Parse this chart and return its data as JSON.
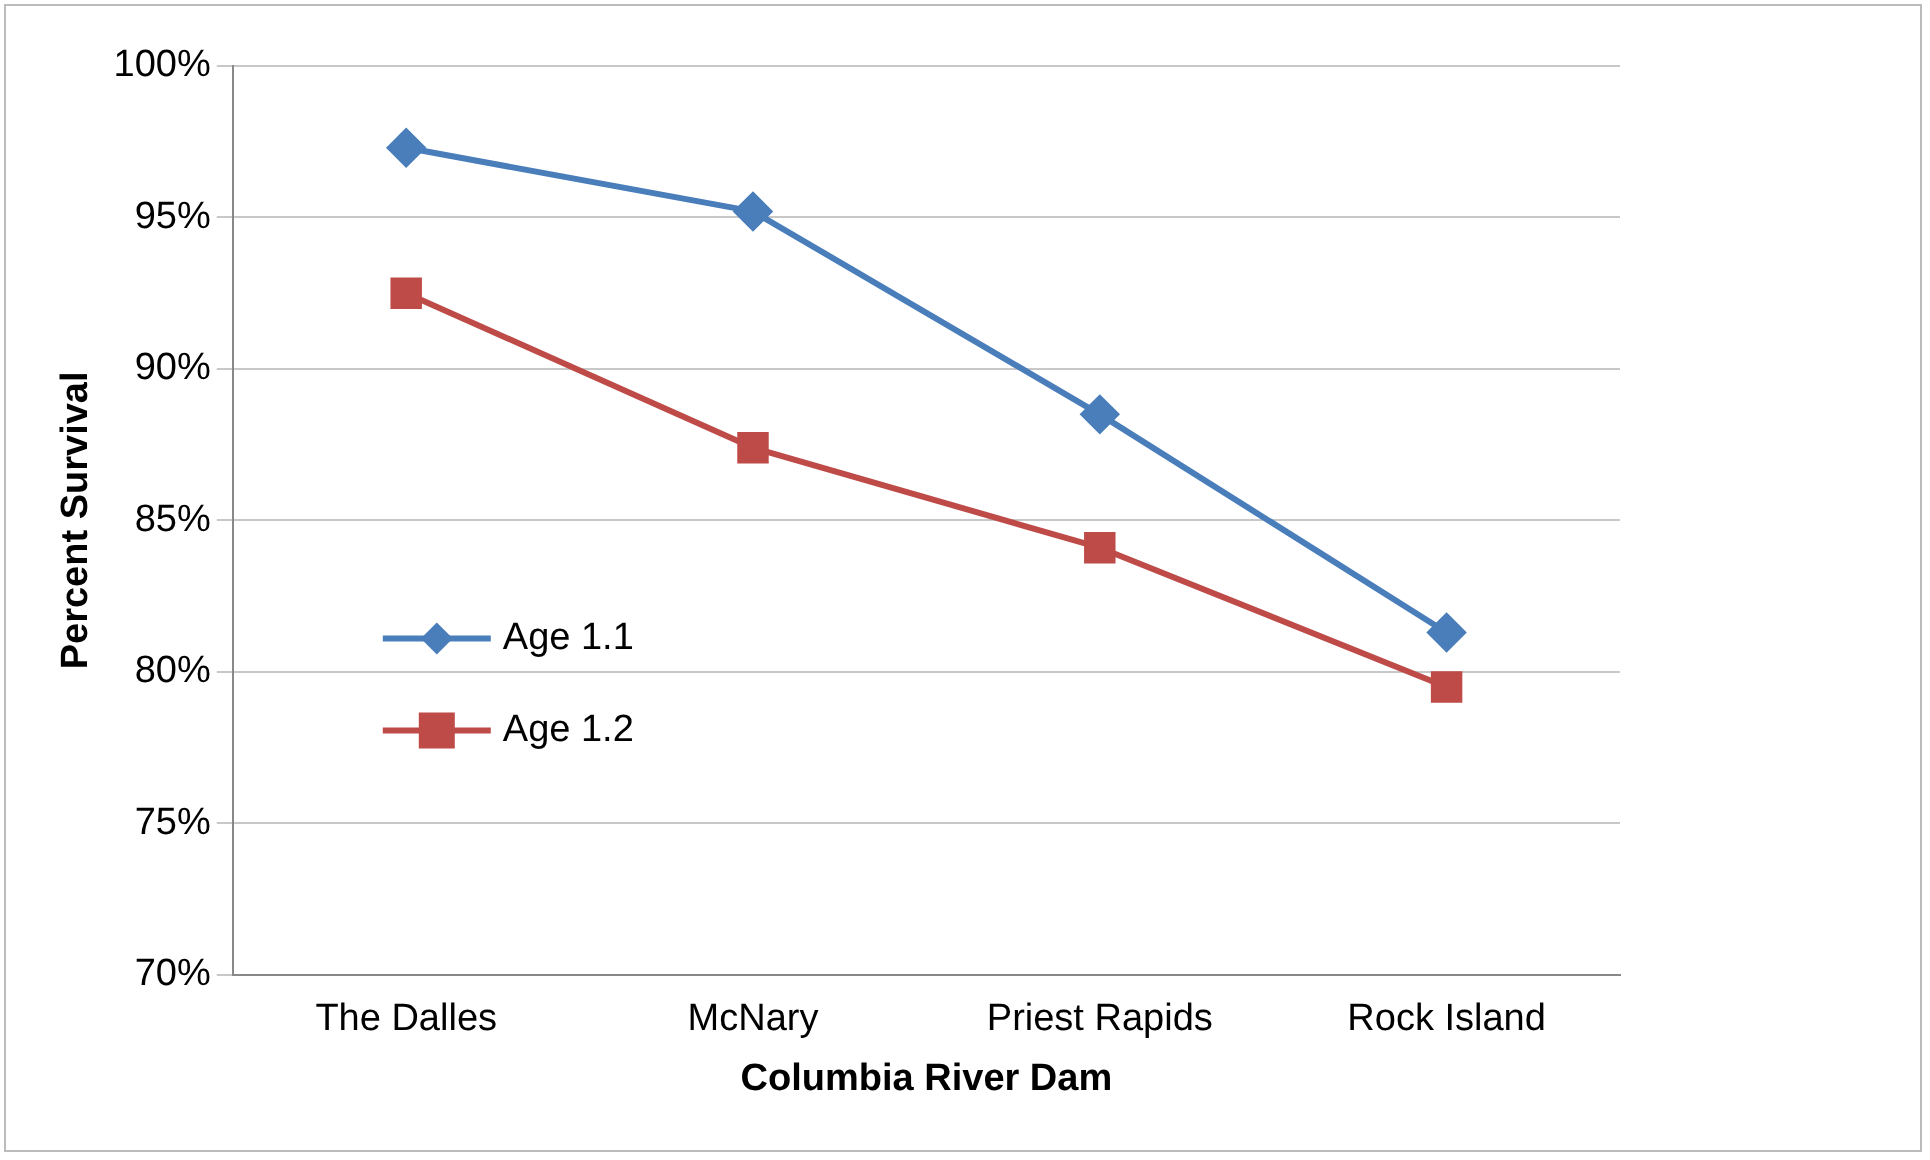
{
  "chart_data": {
    "type": "line",
    "xlabel": "Columbia River Dam",
    "ylabel": "Percent Survival",
    "categories": [
      "The Dalles",
      "McNary",
      "Priest Rapids",
      "Rock Island"
    ],
    "series": [
      {
        "name": "Age 1.1",
        "color": "#4a7ebb",
        "marker": "diamond",
        "values": [
          97.3,
          95.2,
          88.5,
          81.3
        ]
      },
      {
        "name": "Age 1.2",
        "color": "#be4b48",
        "marker": "square",
        "values": [
          92.5,
          87.4,
          84.1,
          79.5
        ]
      }
    ],
    "ylim": [
      70,
      100
    ],
    "yticks": [
      {
        "value": 70,
        "label": "70%"
      },
      {
        "value": 75,
        "label": "75%"
      },
      {
        "value": 80,
        "label": "80%"
      },
      {
        "value": 85,
        "label": "85%"
      },
      {
        "value": 90,
        "label": "90%"
      },
      {
        "value": 95,
        "label": "95%"
      },
      {
        "value": 100,
        "label": "100%"
      }
    ],
    "grid": "y",
    "legend": "left",
    "line_style": "solid"
  }
}
